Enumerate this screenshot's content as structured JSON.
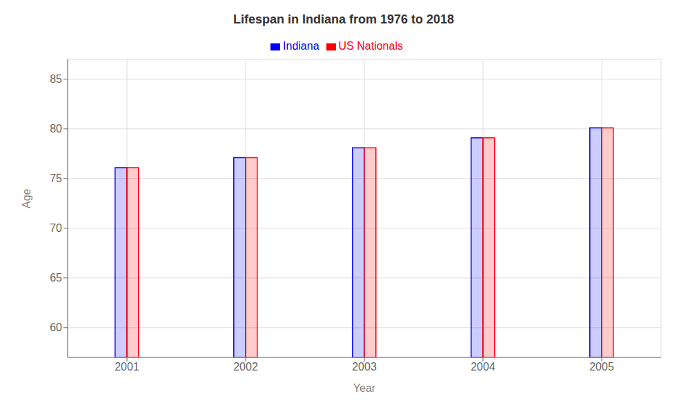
{
  "chart_data": {
    "type": "bar",
    "title": "Lifespan in Indiana from 1976 to 2018",
    "x_label": "Year",
    "y_label": "Age",
    "categories": [
      "2001",
      "2002",
      "2003",
      "2004",
      "2005"
    ],
    "series": [
      {
        "name": "Indiana",
        "color": "#0000ff",
        "values": [
          76.1,
          77.1,
          78.1,
          79.1,
          80.1
        ]
      },
      {
        "name": "US Nationals",
        "color": "#ff0000",
        "values": [
          76.1,
          77.1,
          78.1,
          79.1,
          80.1
        ]
      }
    ],
    "ylim": [
      57,
      87
    ],
    "yticks": [
      60,
      65,
      70,
      75,
      80,
      85
    ],
    "grid": true,
    "legend": "top"
  }
}
